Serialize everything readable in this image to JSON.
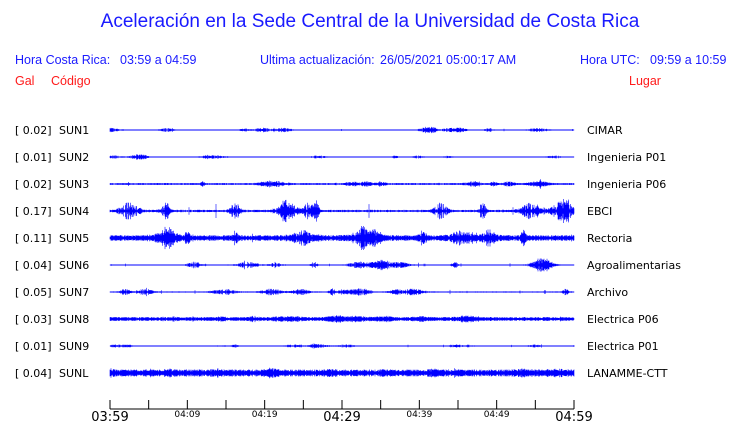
{
  "title": "Aceleración en la Sede Central de la Universidad de Costa Rica",
  "header": {
    "local_label": "Hora Costa Rica:",
    "local_range": "03:59 a 04:59",
    "update_label": "Ultima actualización:",
    "update_value": "26/05/2021 05:00:17 AM",
    "utc_label": "Hora UTC:",
    "utc_range": "09:59 a 10:59"
  },
  "columns": {
    "gal": "Gal",
    "code": "Código",
    "place": "Lugar"
  },
  "colors": {
    "title": "#1a1aff",
    "columns": "#ff1a1a",
    "trace": "#0000ff"
  },
  "chart_data": {
    "type": "line",
    "xlabel": "",
    "ylabel": "",
    "x_ticks": [
      "03:59",
      "04:09",
      "04:19",
      "04:29",
      "04:39",
      "04:49",
      "04:59"
    ],
    "x_range": [
      "03:59",
      "04:59"
    ],
    "minor_tick_interval_min": 5,
    "grid": false,
    "series": [
      {
        "gal": "[  0.02]",
        "code": "SUN1",
        "place": "CIMAR"
      },
      {
        "gal": "[  0.01]",
        "code": "SUN2",
        "place": "Ingenieria P01"
      },
      {
        "gal": "[  0.02]",
        "code": "SUN3",
        "place": "Ingenieria P06"
      },
      {
        "gal": "[  0.17]",
        "code": "SUN4",
        "place": "EBCI"
      },
      {
        "gal": "[  0.11]",
        "code": "SUN5",
        "place": "Rectoria"
      },
      {
        "gal": "[  0.04]",
        "code": "SUN6",
        "place": "Agroalimentarias"
      },
      {
        "gal": "[  0.05]",
        "code": "SUN7",
        "place": "Archivo"
      },
      {
        "gal": "[  0.03]",
        "code": "SUN8",
        "place": "Electrica P06"
      },
      {
        "gal": "[  0.01]",
        "code": "SUN9",
        "place": "Electrica P01"
      },
      {
        "gal": "[  0.04]",
        "code": "SUNL",
        "place": "LANAMME-CTT"
      }
    ]
  }
}
